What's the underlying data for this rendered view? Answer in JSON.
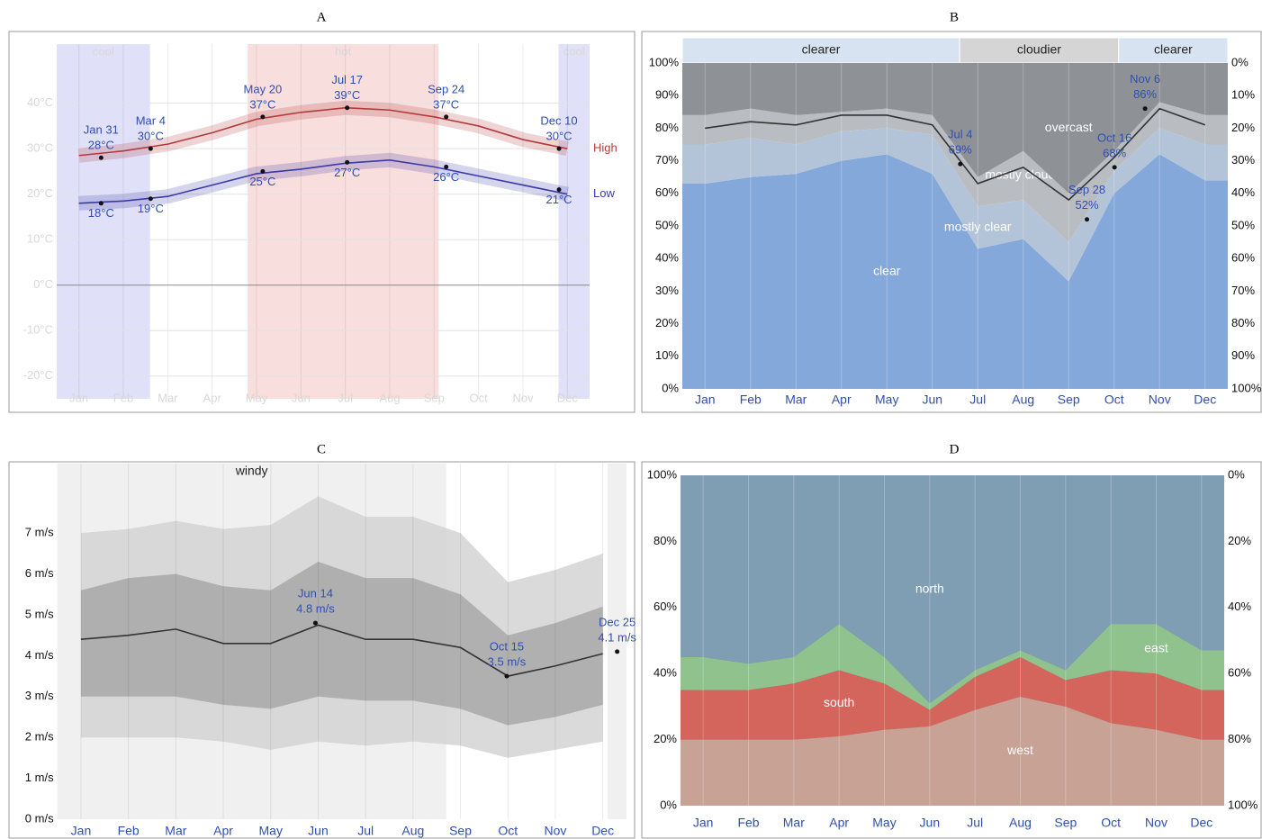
{
  "chart_data": [
    {
      "type": "line",
      "title": "A",
      "categories": [
        "Jan",
        "Feb",
        "Mar",
        "Apr",
        "May",
        "Jun",
        "Jul",
        "Aug",
        "Sep",
        "Oct",
        "Nov",
        "Dec"
      ],
      "ylim": [
        -25,
        53
      ],
      "yticks": [
        {
          "value": -20,
          "label": "-20°C"
        },
        {
          "value": -10,
          "label": "-10°C"
        },
        {
          "value": 0,
          "label": "0°C"
        },
        {
          "value": 10,
          "label": "10°C"
        },
        {
          "value": 20,
          "label": "20°C"
        },
        {
          "value": 30,
          "label": "30°C"
        },
        {
          "value": 40,
          "label": "40°C"
        }
      ],
      "grid": true,
      "periods": [
        {
          "label": "cool",
          "start": 0,
          "end": 2.1,
          "color": "#d8d8f8"
        },
        {
          "label": "hot",
          "start": 4.3,
          "end": 8.6,
          "color": "#f8d6d6"
        },
        {
          "label": "cool",
          "start": 11.3,
          "end": 12,
          "color": "#d8d8f8"
        }
      ],
      "series": [
        {
          "name": "High",
          "color": "#b33a3a",
          "values": [
            28.5,
            29.5,
            31,
            33.5,
            36.5,
            38,
            39,
            38.5,
            37,
            35,
            32,
            30
          ]
        },
        {
          "name": "Low",
          "color": "#3a3aa8",
          "values": [
            18,
            18.5,
            19.5,
            22,
            24.5,
            25.5,
            26.8,
            27.5,
            26,
            24,
            22,
            20
          ]
        }
      ],
      "annotations": [
        {
          "date": "Jan 31",
          "values": [
            28,
            18
          ],
          "value_labels": [
            "28°C",
            "18°C"
          ]
        },
        {
          "date": "Mar 4",
          "values": [
            30,
            19
          ],
          "value_labels": [
            "30°C",
            "19°C"
          ]
        },
        {
          "date": "May 20",
          "values": [
            37,
            25
          ],
          "value_labels": [
            "37°C",
            "25°C"
          ]
        },
        {
          "date": "Jul 17",
          "values": [
            39,
            27
          ],
          "value_labels": [
            "39°C",
            "27°C"
          ]
        },
        {
          "date": "Sep 24",
          "values": [
            37,
            26
          ],
          "value_labels": [
            "37°C",
            "26°C"
          ]
        },
        {
          "date": "Dec 10",
          "values": [
            30,
            21
          ],
          "value_labels": [
            "30°C",
            "21°C"
          ]
        }
      ]
    },
    {
      "type": "area",
      "title": "B",
      "stacked": true,
      "categories": [
        "Jan",
        "Feb",
        "Mar",
        "Apr",
        "May",
        "Jun",
        "Jul",
        "Aug",
        "Sep",
        "Oct",
        "Nov",
        "Dec"
      ],
      "ylim": [
        0,
        100
      ],
      "yticks": [
        {
          "value": 0,
          "label": "0%"
        },
        {
          "value": 10,
          "label": "10%"
        },
        {
          "value": 20,
          "label": "20%"
        },
        {
          "value": 30,
          "label": "30%"
        },
        {
          "value": 40,
          "label": "40%"
        },
        {
          "value": 50,
          "label": "50%"
        },
        {
          "value": 60,
          "label": "60%"
        },
        {
          "value": 70,
          "label": "70%"
        },
        {
          "value": 80,
          "label": "80%"
        },
        {
          "value": 90,
          "label": "90%"
        },
        {
          "value": 100,
          "label": "100%"
        }
      ],
      "y2lim": [
        100,
        0
      ],
      "y2ticks": [
        {
          "value": 0,
          "label": "0%"
        },
        {
          "value": 10,
          "label": "10%"
        },
        {
          "value": 20,
          "label": "20%"
        },
        {
          "value": 30,
          "label": "30%"
        },
        {
          "value": 40,
          "label": "40%"
        },
        {
          "value": 50,
          "label": "50%"
        },
        {
          "value": 60,
          "label": "60%"
        },
        {
          "value": 70,
          "label": "70%"
        },
        {
          "value": 80,
          "label": "80%"
        },
        {
          "value": 90,
          "label": "90%"
        },
        {
          "value": 100,
          "label": "100%"
        }
      ],
      "periods": [
        {
          "label": "clearer",
          "start": 0,
          "end": 6.1,
          "color": "#d7e3f1"
        },
        {
          "label": "cloudier",
          "start": 6.1,
          "end": 9.6,
          "color": "#d5d5d5"
        },
        {
          "label": "clearer",
          "start": 9.6,
          "end": 12,
          "color": "#d7e3f1"
        }
      ],
      "series": [
        {
          "name": "clear",
          "color": "#85a8da",
          "values": [
            63,
            65,
            66,
            70,
            72,
            66,
            43,
            46,
            33,
            60,
            72,
            64
          ]
        },
        {
          "name": "mostly clear",
          "color": "#b4c4d8",
          "values": [
            12,
            12,
            9,
            9,
            8,
            12,
            13,
            12,
            12,
            7,
            8,
            11
          ]
        },
        {
          "name": "mostly cloudy",
          "color": "#b9bdc2",
          "values": [
            9,
            9,
            9,
            6,
            6,
            6,
            9,
            15,
            15,
            6,
            8,
            9
          ]
        },
        {
          "name": "overcast",
          "color": "#8e9297",
          "values": [
            16,
            14,
            16,
            15,
            14,
            16,
            35,
            27,
            40,
            27,
            12,
            16
          ]
        }
      ],
      "line": {
        "color": "#333333",
        "values": [
          80,
          82,
          81,
          84,
          84,
          81,
          63,
          68,
          58,
          71,
          86,
          81
        ]
      },
      "annotations": [
        {
          "date": "Jul 4",
          "value": 69,
          "value_label": "69%"
        },
        {
          "date": "Sep 28",
          "value": 52,
          "value_label": "52%"
        },
        {
          "date": "Oct 16",
          "value": 68,
          "value_label": "68%"
        },
        {
          "date": "Nov 6",
          "value": 86,
          "value_label": "86%"
        }
      ]
    },
    {
      "type": "line",
      "title": "C",
      "categories": [
        "Jan",
        "Feb",
        "Mar",
        "Apr",
        "May",
        "Jun",
        "Jul",
        "Aug",
        "Sep",
        "Oct",
        "Nov",
        "Dec"
      ],
      "ylim": [
        0,
        8.7
      ],
      "yticks": [
        {
          "value": 0,
          "label": "0 m/s"
        },
        {
          "value": 1,
          "label": "1 m/s"
        },
        {
          "value": 2,
          "label": "2 m/s"
        },
        {
          "value": 3,
          "label": "3 m/s"
        },
        {
          "value": 4,
          "label": "4 m/s"
        },
        {
          "value": 5,
          "label": "5 m/s"
        },
        {
          "value": 6,
          "label": "6 m/s"
        },
        {
          "value": 7,
          "label": "7 m/s"
        }
      ],
      "periods": [
        {
          "label": "windy",
          "start": 0,
          "end": 8.2,
          "color": "#ececec"
        },
        {
          "start": 11.6,
          "end": 12,
          "color": "#ececec"
        }
      ],
      "envelopes": [
        {
          "color": "#d4d4d4",
          "lower": [
            2.0,
            2.0,
            2.0,
            1.9,
            1.7,
            1.9,
            1.8,
            1.9,
            1.8,
            1.5,
            1.7,
            1.9
          ],
          "upper": [
            7.0,
            7.1,
            7.3,
            7.1,
            7.2,
            7.9,
            7.4,
            7.4,
            7.0,
            5.8,
            6.1,
            6.5
          ]
        },
        {
          "color": "#a8a8a8",
          "lower": [
            3.0,
            3.0,
            3.0,
            2.8,
            2.7,
            3.0,
            2.9,
            2.9,
            2.7,
            2.3,
            2.5,
            2.8
          ],
          "upper": [
            5.6,
            5.9,
            6.0,
            5.7,
            5.6,
            6.3,
            5.9,
            5.9,
            5.5,
            4.5,
            4.8,
            5.2
          ]
        }
      ],
      "series": [
        {
          "color": "#333333",
          "values": [
            4.4,
            4.5,
            4.65,
            4.3,
            4.3,
            4.75,
            4.4,
            4.4,
            4.2,
            3.5,
            3.75,
            4.05
          ]
        }
      ],
      "annotations": [
        {
          "date": "Jun 14",
          "value": 4.8,
          "value_label": "4.8 m/s"
        },
        {
          "date": "Oct 15",
          "value": 3.5,
          "value_label": "3.5 m/s"
        },
        {
          "date": "Dec 25",
          "value": 4.1,
          "value_label": "4.1 m/s"
        }
      ]
    },
    {
      "type": "area",
      "title": "D",
      "stacked": true,
      "categories": [
        "Jan",
        "Feb",
        "Mar",
        "Apr",
        "May",
        "Jun",
        "Jul",
        "Aug",
        "Sep",
        "Oct",
        "Nov",
        "Dec"
      ],
      "ylim": [
        0,
        100
      ],
      "yticks": [
        {
          "value": 0,
          "label": "0%"
        },
        {
          "value": 20,
          "label": "20%"
        },
        {
          "value": 40,
          "label": "40%"
        },
        {
          "value": 60,
          "label": "60%"
        },
        {
          "value": 80,
          "label": "80%"
        },
        {
          "value": 100,
          "label": "100%"
        }
      ],
      "y2lim": [
        100,
        0
      ],
      "y2ticks": [
        {
          "value": 0,
          "label": "0%"
        },
        {
          "value": 20,
          "label": "20%"
        },
        {
          "value": 40,
          "label": "40%"
        },
        {
          "value": 60,
          "label": "60%"
        },
        {
          "value": 80,
          "label": "80%"
        },
        {
          "value": 100,
          "label": "100%"
        }
      ],
      "series": [
        {
          "name": "west",
          "color": "#c7a295",
          "values": [
            20,
            20,
            20,
            21,
            23,
            24,
            29,
            33,
            30,
            25,
            23,
            20
          ]
        },
        {
          "name": "south",
          "color": "#d4655c",
          "values": [
            15,
            15,
            17,
            20,
            14,
            5,
            10,
            12,
            8,
            16,
            17,
            15
          ]
        },
        {
          "name": "east",
          "color": "#8fc28d",
          "values": [
            10,
            8,
            8,
            14,
            8,
            2,
            2,
            2,
            3,
            14,
            15,
            12
          ]
        },
        {
          "name": "north",
          "color": "#7f9db3",
          "values": [
            55,
            57,
            55,
            45,
            55,
            69,
            59,
            53,
            59,
            45,
            45,
            53
          ]
        }
      ]
    }
  ]
}
